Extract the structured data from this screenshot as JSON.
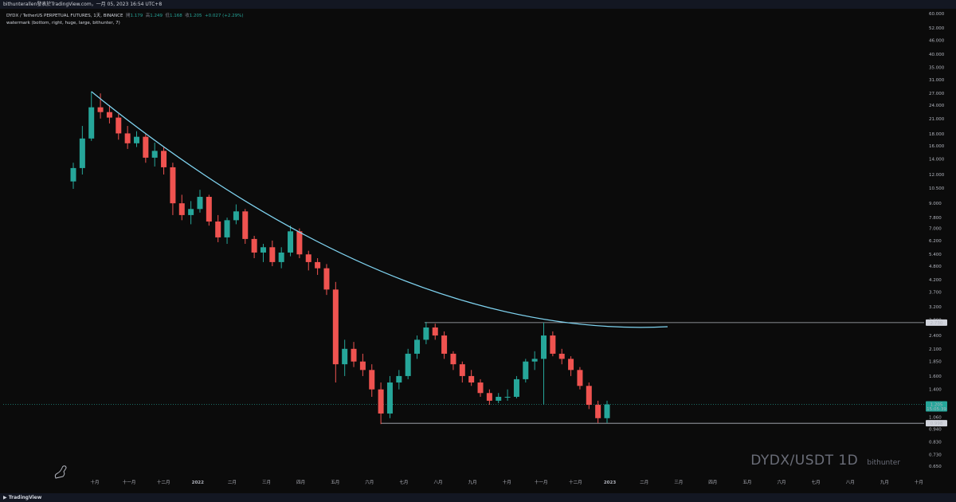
{
  "header": {
    "publisher": "bithunterallen發表於TradingView.com，一月 05, 2023 16:54 UTC+8"
  },
  "legend": {
    "symbol_line": "DYDX / TetherUS PERPETUAL FUTURES, 1天, BINANCE",
    "open_label": "開",
    "open": "1.179",
    "high_label": "高",
    "high": "1.249",
    "low_label": "低",
    "low": "1.168",
    "close_label": "收",
    "close": "1.205",
    "change": "+0.027 (+2.29%)",
    "watermark_line": "watermark (bottom, right, huge, large, bithunter, 7)"
  },
  "watermark": {
    "pair": "DYDX/USDT 1D",
    "author": "bithunter"
  },
  "footer": {
    "brand": "TradingView"
  },
  "colors": {
    "up": "#26a69a",
    "down": "#ef5350",
    "curve": "#7fd3f0",
    "background": "#0b0b0b",
    "last_price": "#26a69a"
  },
  "chart_data": {
    "type": "candlestick",
    "y_scale": "log",
    "y_ticks": [
      "60.000",
      "52.000",
      "46.000",
      "40.000",
      "35.000",
      "31.000",
      "27.000",
      "24.000",
      "21.000",
      "18.000",
      "16.000",
      "14.000",
      "12.000",
      "10.500",
      "9.000",
      "7.800",
      "7.000",
      "6.200",
      "5.400",
      "4.800",
      "4.200",
      "3.700",
      "3.200",
      "2.800",
      "2.400",
      "2.100",
      "1.850",
      "1.600",
      "1.400",
      "1.200",
      "1.060",
      "0.940",
      "0.830",
      "0.730",
      "0.650"
    ],
    "x_ticks": [
      "十月",
      "十一月",
      "十二月",
      "2022",
      "二月",
      "三月",
      "四月",
      "五月",
      "六月",
      "七月",
      "八月",
      "九月",
      "十月",
      "十一月",
      "十二月",
      "2023",
      "二月",
      "三月",
      "四月",
      "五月",
      "六月",
      "七月",
      "八月",
      "九月",
      "十月"
    ],
    "price_labels": {
      "resistance": "2.730",
      "last": "1.205",
      "countdown": "15:05:39",
      "support": "0.998"
    },
    "series": [
      {
        "name": "DYDX/USDT",
        "x_start": "2021-09-08",
        "interval_days": 7,
        "ohlc": [
          [
            11.2,
            13.5,
            10.4,
            12.8
          ],
          [
            12.8,
            19.5,
            12.0,
            17.2
          ],
          [
            17.2,
            27.5,
            16.8,
            23.5
          ],
          [
            23.5,
            27.0,
            21.0,
            22.4
          ],
          [
            22.4,
            24.0,
            20.0,
            21.2
          ],
          [
            21.2,
            22.0,
            17.0,
            18.1
          ],
          [
            18.1,
            19.5,
            15.5,
            16.4
          ],
          [
            16.4,
            18.5,
            15.8,
            17.5
          ],
          [
            17.5,
            18.0,
            13.5,
            14.2
          ],
          [
            14.2,
            16.5,
            13.0,
            15.2
          ],
          [
            15.2,
            15.8,
            12.0,
            12.9
          ],
          [
            12.9,
            13.5,
            8.0,
            9.0
          ],
          [
            9.0,
            9.8,
            7.6,
            8.0
          ],
          [
            8.0,
            9.2,
            7.3,
            8.5
          ],
          [
            8.5,
            10.3,
            8.2,
            9.6
          ],
          [
            9.6,
            9.8,
            7.2,
            7.5
          ],
          [
            7.5,
            8.0,
            6.1,
            6.4
          ],
          [
            6.4,
            7.8,
            6.0,
            7.6
          ],
          [
            7.6,
            8.9,
            7.3,
            8.3
          ],
          [
            8.3,
            8.5,
            6.0,
            6.3
          ],
          [
            6.3,
            6.5,
            5.2,
            5.5
          ],
          [
            5.5,
            6.0,
            5.0,
            5.8
          ],
          [
            5.8,
            6.2,
            4.8,
            5.0
          ],
          [
            5.0,
            5.8,
            4.7,
            5.5
          ],
          [
            5.5,
            7.2,
            5.3,
            6.8
          ],
          [
            6.8,
            7.0,
            5.2,
            5.4
          ],
          [
            5.4,
            5.6,
            4.6,
            5.0
          ],
          [
            5.0,
            5.2,
            4.4,
            4.7
          ],
          [
            4.7,
            4.9,
            3.6,
            3.8
          ],
          [
            3.8,
            4.1,
            1.5,
            1.8
          ],
          [
            1.8,
            2.3,
            1.6,
            2.1
          ],
          [
            2.1,
            2.25,
            1.75,
            1.85
          ],
          [
            1.85,
            2.0,
            1.6,
            1.7
          ],
          [
            1.7,
            1.8,
            1.3,
            1.4
          ],
          [
            1.4,
            1.5,
            0.99,
            1.1
          ],
          [
            1.1,
            1.6,
            1.05,
            1.5
          ],
          [
            1.5,
            1.7,
            1.4,
            1.6
          ],
          [
            1.6,
            2.1,
            1.55,
            2.0
          ],
          [
            2.0,
            2.4,
            1.9,
            2.3
          ],
          [
            2.3,
            2.75,
            2.2,
            2.6
          ],
          [
            2.6,
            2.7,
            2.3,
            2.4
          ],
          [
            2.4,
            2.5,
            1.9,
            2.0
          ],
          [
            2.0,
            2.05,
            1.7,
            1.8
          ],
          [
            1.8,
            1.85,
            1.5,
            1.6
          ],
          [
            1.6,
            1.7,
            1.45,
            1.5
          ],
          [
            1.5,
            1.55,
            1.3,
            1.35
          ],
          [
            1.35,
            1.4,
            1.2,
            1.25
          ],
          [
            1.25,
            1.35,
            1.22,
            1.3
          ],
          [
            1.3,
            1.4,
            1.25,
            1.3
          ],
          [
            1.3,
            1.6,
            1.28,
            1.55
          ],
          [
            1.55,
            1.9,
            1.5,
            1.85
          ],
          [
            1.85,
            2.05,
            1.7,
            1.9
          ],
          [
            1.9,
            2.73,
            1.2,
            2.4
          ],
          [
            2.4,
            2.5,
            1.95,
            2.0
          ],
          [
            2.0,
            2.1,
            1.8,
            1.9
          ],
          [
            1.9,
            1.95,
            1.6,
            1.7
          ],
          [
            1.7,
            1.75,
            1.4,
            1.45
          ],
          [
            1.45,
            1.5,
            1.15,
            1.2
          ],
          [
            1.2,
            1.25,
            1.0,
            1.05
          ],
          [
            1.05,
            1.25,
            1.0,
            1.205
          ]
        ]
      }
    ]
  }
}
